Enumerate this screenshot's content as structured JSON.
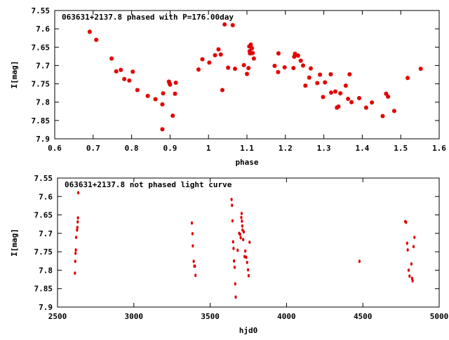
{
  "colors": {
    "marker": "#e00000",
    "axis": "#000000",
    "background": "#ffffff"
  },
  "chart_data": [
    {
      "type": "scatter",
      "title": "063631+2137.8 phased with P=176.00day",
      "xlabel": "phase",
      "ylabel": "I[mag]",
      "xlim": [
        0.6,
        1.6
      ],
      "ylim": [
        7.9,
        7.55
      ],
      "y_inverted": true,
      "xticks": [
        0.6,
        0.7,
        0.8,
        0.9,
        1,
        1.1,
        1.2,
        1.3,
        1.4,
        1.5,
        1.6
      ],
      "xtick_labels": [
        "0.6",
        "0.7",
        "0.8",
        "0.9",
        "1",
        "1.1",
        "1.2",
        "1.3",
        "1.4",
        "1.5",
        "1.6"
      ],
      "yticks": [
        7.55,
        7.6,
        7.65,
        7.7,
        7.75,
        7.8,
        7.85,
        7.9
      ],
      "ytick_labels": [
        "7.55",
        "7.6",
        "7.65",
        "7.7",
        "7.75",
        "7.8",
        "7.85",
        "7.9"
      ],
      "grid": false,
      "marker": "star",
      "points": [
        [
          0.691,
          7.608
        ],
        [
          0.708,
          7.63
        ],
        [
          0.748,
          7.681
        ],
        [
          0.76,
          7.716
        ],
        [
          0.772,
          7.712
        ],
        [
          0.781,
          7.737
        ],
        [
          0.794,
          7.741
        ],
        [
          0.803,
          7.717
        ],
        [
          0.815,
          7.767
        ],
        [
          0.842,
          7.783
        ],
        [
          0.862,
          7.792
        ],
        [
          0.88,
          7.806
        ],
        [
          0.88,
          7.874
        ],
        [
          0.882,
          7.776
        ],
        [
          0.897,
          7.744
        ],
        [
          0.899,
          7.749
        ],
        [
          0.9,
          7.752
        ],
        [
          0.907,
          7.837
        ],
        [
          0.913,
          7.777
        ],
        [
          0.915,
          7.747
        ],
        [
          0.974,
          7.711
        ],
        [
          0.984,
          7.683
        ],
        [
          1.002,
          7.692
        ],
        [
          1.017,
          7.672
        ],
        [
          1.026,
          7.656
        ],
        [
          1.032,
          7.67
        ],
        [
          1.036,
          7.767
        ],
        [
          1.042,
          7.588
        ],
        [
          1.051,
          7.706
        ],
        [
          1.063,
          7.59
        ],
        [
          1.069,
          7.709
        ],
        [
          1.092,
          7.699
        ],
        [
          1.1,
          7.723
        ],
        [
          1.104,
          7.707
        ],
        [
          1.106,
          7.648
        ],
        [
          1.107,
          7.661
        ],
        [
          1.108,
          7.667
        ],
        [
          1.11,
          7.643
        ],
        [
          1.113,
          7.653
        ],
        [
          1.115,
          7.666
        ],
        [
          1.118,
          7.681
        ],
        [
          1.172,
          7.701
        ],
        [
          1.181,
          7.718
        ],
        [
          1.182,
          7.667
        ],
        [
          1.198,
          7.705
        ],
        [
          1.221,
          7.707
        ],
        [
          1.223,
          7.676
        ],
        [
          1.225,
          7.668
        ],
        [
          1.233,
          7.673
        ],
        [
          1.24,
          7.687
        ],
        [
          1.246,
          7.7
        ],
        [
          1.252,
          7.755
        ],
        [
          1.262,
          7.733
        ],
        [
          1.266,
          7.708
        ],
        [
          1.283,
          7.748
        ],
        [
          1.29,
          7.725
        ],
        [
          1.298,
          7.786
        ],
        [
          1.303,
          7.746
        ],
        [
          1.318,
          7.724
        ],
        [
          1.319,
          7.774
        ],
        [
          1.33,
          7.771
        ],
        [
          1.334,
          7.815
        ],
        [
          1.338,
          7.812
        ],
        [
          1.343,
          7.776
        ],
        [
          1.357,
          7.755
        ],
        [
          1.363,
          7.791
        ],
        [
          1.367,
          7.724
        ],
        [
          1.372,
          7.8
        ],
        [
          1.392,
          7.789
        ],
        [
          1.41,
          7.815
        ],
        [
          1.425,
          7.801
        ],
        [
          1.453,
          7.838
        ],
        [
          1.462,
          7.777
        ],
        [
          1.467,
          7.785
        ],
        [
          1.483,
          7.824
        ],
        [
          1.518,
          7.734
        ],
        [
          1.552,
          7.709
        ]
      ]
    },
    {
      "type": "scatter",
      "title": "063631+2137.8 not phased light curve",
      "xlabel": "hjd0",
      "ylabel": "I[mag]",
      "xlim": [
        2500,
        5000
      ],
      "ylim": [
        7.9,
        7.55
      ],
      "y_inverted": true,
      "xticks": [
        2500,
        3000,
        3500,
        4000,
        4500,
        5000
      ],
      "xtick_labels": [
        "2500",
        "3000",
        "3500",
        "4000",
        "4500",
        "5000"
      ],
      "yticks": [
        7.55,
        7.6,
        7.65,
        7.7,
        7.75,
        7.8,
        7.85,
        7.9
      ],
      "ytick_labels": [
        "7.55",
        "7.6",
        "7.65",
        "7.7",
        "7.75",
        "7.8",
        "7.85",
        "7.9"
      ],
      "grid": false,
      "marker": "dot",
      "points": [
        [
          2614,
          7.808
        ],
        [
          2616,
          7.776
        ],
        [
          2618,
          7.754
        ],
        [
          2620,
          7.745
        ],
        [
          2622,
          7.711
        ],
        [
          2628,
          7.691
        ],
        [
          2630,
          7.684
        ],
        [
          2632,
          7.669
        ],
        [
          2634,
          7.658
        ],
        [
          2636,
          7.59
        ],
        [
          3380,
          7.672
        ],
        [
          3384,
          7.701
        ],
        [
          3386,
          7.734
        ],
        [
          3392,
          7.776
        ],
        [
          3396,
          7.789
        ],
        [
          3400,
          7.789
        ],
        [
          3404,
          7.814
        ],
        [
          3640,
          7.608
        ],
        [
          3643,
          7.624
        ],
        [
          3646,
          7.666
        ],
        [
          3650,
          7.723
        ],
        [
          3653,
          7.741
        ],
        [
          3656,
          7.775
        ],
        [
          3660,
          7.792
        ],
        [
          3664,
          7.837
        ],
        [
          3667,
          7.873
        ],
        [
          3680,
          7.746
        ],
        [
          3690,
          7.7
        ],
        [
          3696,
          7.703
        ],
        [
          3700,
          7.712
        ],
        [
          3704,
          7.657
        ],
        [
          3706,
          7.646
        ],
        [
          3708,
          7.667
        ],
        [
          3710,
          7.68
        ],
        [
          3712,
          7.691
        ],
        [
          3716,
          7.717
        ],
        [
          3720,
          7.696
        ],
        [
          3725,
          7.763
        ],
        [
          3730,
          7.748
        ],
        [
          3736,
          7.765
        ],
        [
          3742,
          7.779
        ],
        [
          3748,
          7.799
        ],
        [
          3752,
          7.815
        ],
        [
          3758,
          7.724
        ],
        [
          4478,
          7.776
        ],
        [
          4778,
          7.668
        ],
        [
          4783,
          7.67
        ],
        [
          4790,
          7.727
        ],
        [
          4794,
          7.745
        ],
        [
          4800,
          7.8
        ],
        [
          4806,
          7.816
        ],
        [
          4818,
          7.783
        ],
        [
          4826,
          7.829
        ],
        [
          4832,
          7.736
        ],
        [
          4838,
          7.711
        ],
        [
          4822,
          7.822
        ]
      ]
    }
  ]
}
